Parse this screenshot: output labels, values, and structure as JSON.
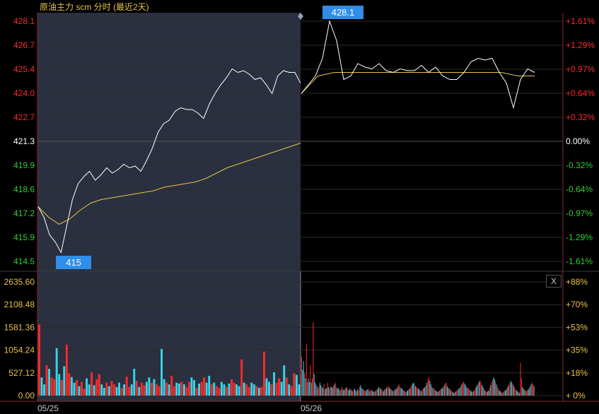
{
  "title": "原油主力 scm 分时 (最近2天)",
  "close_label": "X",
  "colors": {
    "up": "#ff2a2a",
    "down": "#2fd02f",
    "neutral": "#ffffff",
    "price_line": "#ffffff",
    "avg_line": "#e8c24a",
    "vol_up": "#ff2a2a",
    "vol_down": "#35d6ea",
    "highlight_bg": "#2a303f",
    "badge": "#2e8ee8",
    "grid": "#2a2a2a",
    "axis": "#8a2a2a"
  },
  "chart_data": {
    "type": "line",
    "title": "原油主力 scm 分时 (最近2天)",
    "highlighted_day": "05/25",
    "x_labels": [
      "05/25",
      "05/26"
    ],
    "price_axis": {
      "ticks": [
        "428.1",
        "426.7",
        "425.4",
        "424.0",
        "422.7",
        "421.3",
        "419.9",
        "418.6",
        "417.2",
        "415.9",
        "414.5"
      ],
      "values": [
        428.1,
        426.7,
        425.4,
        424.0,
        422.7,
        421.3,
        419.9,
        418.6,
        417.2,
        415.9,
        414.5
      ],
      "reference": 421.3
    },
    "percent_axis": {
      "ticks": [
        "+1.61%",
        "+1.29%",
        "+0.97%",
        "+0.64%",
        "+0.32%",
        "0.00%",
        "-0.32%",
        "-0.64%",
        "-0.97%",
        "-1.29%",
        "-1.61%"
      ]
    },
    "volume_axis": {
      "ticks": [
        "2635.60",
        "2108.48",
        "1581.36",
        "1054.24",
        "527.12",
        "0.00"
      ],
      "values": [
        2635.6,
        2108.48,
        1581.36,
        1054.24,
        527.12,
        0
      ],
      "pct_ticks": [
        "+88%",
        "+70%",
        "+53%",
        "+35%",
        "+18%",
        "+ 0%"
      ]
    },
    "annotations": [
      {
        "label": "428.1",
        "value": 428.1,
        "day": "05/26"
      },
      {
        "label": "415",
        "value": 415,
        "day": "05/25"
      }
    ],
    "series": [
      {
        "kind": "price",
        "day_05_25": [
          417.6,
          417.0,
          416.0,
          415.6,
          415.0,
          416.5,
          418.0,
          418.9,
          419.3,
          419.6,
          419.1,
          419.4,
          419.8,
          419.5,
          419.7,
          420.0,
          419.8,
          419.9,
          419.6,
          420.2,
          420.9,
          421.8,
          422.3,
          422.5,
          423.0,
          423.2,
          423.1,
          423.1,
          422.9,
          422.6,
          423.4,
          424.0,
          424.5,
          424.9,
          425.4,
          425.2,
          425.3,
          425.1,
          424.8,
          424.9,
          424.5,
          424.0,
          425.0,
          425.3,
          425.2,
          425.2,
          424.6
        ],
        "day_05_26": [
          424.0,
          424.5,
          425.0,
          426.0,
          428.1,
          427.0,
          424.8,
          425.0,
          425.7,
          425.5,
          425.4,
          425.7,
          425.3,
          425.2,
          425.4,
          425.3,
          425.3,
          425.6,
          425.2,
          425.5,
          425.0,
          424.8,
          424.8,
          425.2,
          425.8,
          426.0,
          425.9,
          426.0,
          425.2,
          424.6,
          423.2,
          424.8,
          425.4,
          425.2
        ]
      },
      {
        "kind": "average",
        "day_05_25": [
          417.6,
          417.0,
          416.6,
          416.9,
          417.4,
          417.8,
          418.0,
          418.1,
          418.2,
          418.3,
          418.4,
          418.5,
          418.7,
          418.8,
          418.9,
          419.0,
          419.2,
          419.5,
          419.8,
          420.0,
          420.2,
          420.4,
          420.6,
          420.8,
          421.0,
          421.2
        ],
        "day_05_26": [
          424.0,
          425.0,
          425.2,
          425.2,
          425.2,
          425.2,
          425.2,
          425.2,
          425.2,
          425.2,
          425.2,
          425.2,
          425.2,
          425.0,
          425.0
        ]
      },
      {
        "kind": "volume",
        "day_05_25": [
          1650,
          420,
          260,
          700,
          620,
          420,
          380,
          1100,
          500,
          360,
          680,
          1180,
          520,
          430,
          300,
          360,
          220,
          320,
          160,
          400,
          260,
          540,
          240,
          380,
          500,
          260,
          180,
          300,
          220,
          340,
          260,
          200,
          300,
          180,
          260,
          440,
          200,
          260,
          620,
          340,
          200,
          300,
          240,
          320,
          420,
          300,
          380,
          260,
          220,
          1080,
          380,
          300,
          260,
          460,
          220,
          300,
          280,
          320,
          260,
          200,
          320,
          420,
          360,
          180,
          280,
          320,
          420,
          300,
          460,
          260,
          300,
          220,
          180,
          320,
          260,
          200,
          280,
          380,
          300,
          260,
          220,
          840,
          300,
          260,
          200,
          300,
          260,
          220,
          180,
          200,
          1020,
          400,
          320,
          260,
          540,
          300,
          400,
          320,
          700,
          420,
          260,
          220,
          520,
          480,
          260
        ],
        "day_05_26": [
          900,
          600,
          800,
          520,
          400,
          1200,
          300,
          400,
          320,
          700,
          300,
          400,
          1700,
          500,
          300,
          260,
          220,
          160,
          220,
          300,
          240,
          200,
          180,
          260,
          140,
          160,
          180,
          300,
          200,
          160,
          220,
          200,
          180,
          220,
          260,
          300,
          200,
          160,
          180,
          140,
          120,
          160,
          200,
          140,
          120,
          160,
          180,
          200,
          140,
          120,
          160,
          140,
          120,
          100,
          140,
          160,
          120,
          100,
          140,
          120,
          200,
          240,
          180,
          160,
          140,
          120,
          100,
          120,
          140,
          160,
          120,
          100,
          140,
          120,
          100,
          80,
          100,
          120,
          140,
          160,
          200,
          180,
          160,
          140,
          120,
          100,
          140,
          160,
          180,
          200,
          220,
          180,
          160,
          140,
          120,
          100,
          120,
          140,
          160,
          180,
          220,
          260,
          200,
          180,
          160,
          140,
          120,
          100,
          80,
          100,
          120,
          140,
          160,
          200,
          240,
          280,
          300,
          260,
          220,
          200,
          180,
          160,
          140,
          120,
          100,
          140,
          160,
          180,
          200,
          240,
          300,
          380,
          420,
          340,
          260,
          200,
          180,
          160,
          140,
          120,
          100,
          80,
          100,
          120,
          140,
          160,
          180,
          200,
          240,
          280,
          300,
          220,
          180,
          160,
          140,
          120,
          100,
          80,
          60,
          80,
          100,
          120,
          140,
          160,
          180,
          220,
          260,
          300,
          320,
          280,
          240,
          200,
          180,
          160,
          140,
          120,
          100,
          80,
          100,
          120,
          160,
          200,
          240,
          280,
          320,
          360,
          300,
          240,
          200,
          160,
          120,
          100,
          80,
          100,
          120,
          180,
          240,
          300,
          360,
          420,
          380,
          320,
          260,
          200,
          160,
          120,
          100,
          80,
          60,
          80,
          100,
          120,
          140,
          180,
          220,
          260,
          300,
          340,
          300,
          260,
          220,
          180,
          140,
          120,
          100,
          80,
          60,
          760,
          400,
          200,
          160,
          140,
          120,
          100,
          120,
          140,
          180,
          220,
          260,
          300,
          260,
          220
        ]
      }
    ]
  }
}
